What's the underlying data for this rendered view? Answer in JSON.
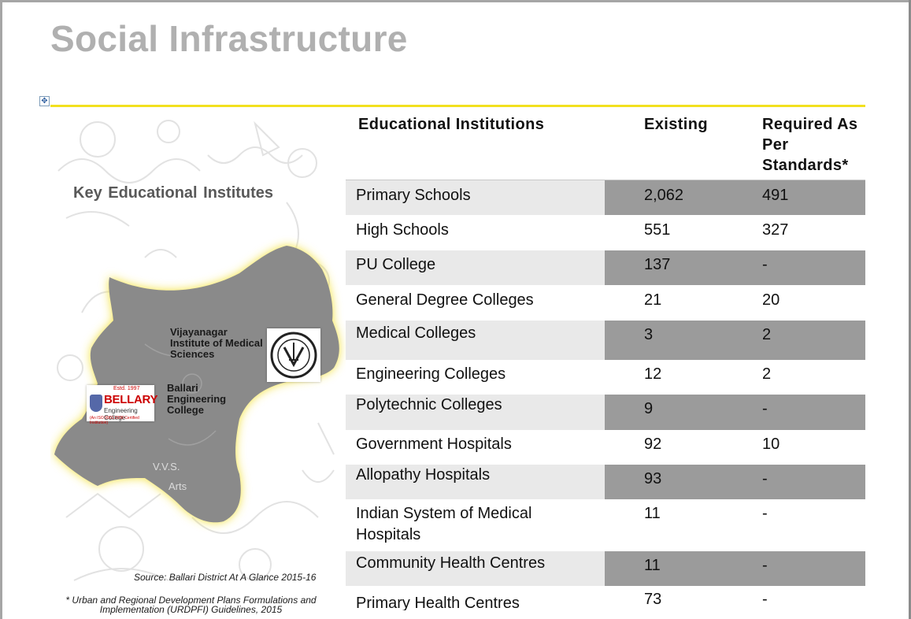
{
  "slide": {
    "title": "Social Infrastructure",
    "key_label": "Key Educational Institutes",
    "source": "Source: Ballari District At A Glance 2015-16",
    "footnote": "* Urban and Regional Development Plans Formulations and Implementation (URDPFI) Guidelines, 2015"
  },
  "map": {
    "institutes": {
      "vims": "Vijayanagar Institute of Medical Sciences",
      "bec": "Ballari Engineering College",
      "vvs": "V.V.S.",
      "other": "Arts"
    },
    "bellary_logo": {
      "est": "Estd. 1997",
      "name": "BELLARY",
      "sub": "Engineering College",
      "foot": "(An ISO 9001:2008 Certified Institution)"
    },
    "colors": {
      "map_fill": "#8a8a8a",
      "map_glow": "#f4e23a"
    }
  },
  "table": {
    "headers": {
      "name": "Educational Institutions",
      "existing": "Existing",
      "required": "Required As Per Standards*"
    },
    "rows": [
      {
        "name": "Primary Schools",
        "existing": "2,062",
        "required": "491"
      },
      {
        "name": "High Schools",
        "existing": "551",
        "required": "327"
      },
      {
        "name": "PU College",
        "existing": "137",
        "required": "-"
      },
      {
        "name": "General Degree Colleges",
        "existing": "21",
        "required": "20"
      },
      {
        "name": "Medical Colleges",
        "existing": "3",
        "required": "2"
      },
      {
        "name": "Engineering Colleges",
        "existing": "12",
        "required": "2"
      },
      {
        "name": "Polytechnic Colleges",
        "existing": "9",
        "required": "-"
      },
      {
        "name": "Government Hospitals",
        "existing": "92",
        "required": "10"
      },
      {
        "name": "Allopathy Hospitals",
        "existing": "93",
        "required": "-"
      },
      {
        "name": "Indian System of Medical Hospitals",
        "existing": "11",
        "required": "-"
      },
      {
        "name": "Community Health Centres",
        "existing": "11",
        "required": "-"
      },
      {
        "name": "Primary Health Centres",
        "existing": "73",
        "required": "-"
      }
    ]
  }
}
